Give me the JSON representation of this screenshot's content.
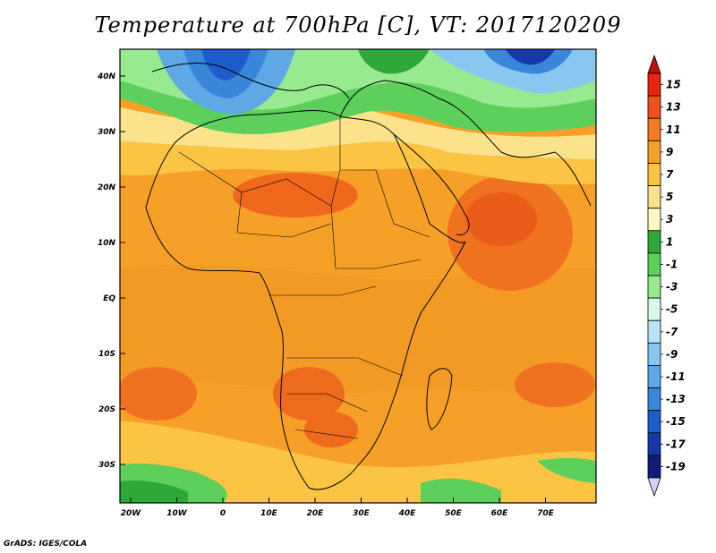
{
  "title": "Temperature at 700hPa [C], VT: 2017120209",
  "credit": "GrADS: IGES/COLA",
  "map": {
    "lat_ticks": [
      "40N",
      "30N",
      "20N",
      "10N",
      "EQ",
      "10S",
      "20S",
      "30S"
    ],
    "lon_ticks": [
      "20W",
      "10W",
      "0",
      "10E",
      "20E",
      "30E",
      "40E",
      "50E",
      "60E",
      "70E"
    ]
  },
  "colorbar": {
    "labels": [
      "15",
      "13",
      "11",
      "9",
      "7",
      "5",
      "3",
      "1",
      "-1",
      "-3",
      "-5",
      "-7",
      "-9",
      "-11",
      "-13",
      "-15",
      "-17",
      "-19"
    ],
    "colors": [
      "#e8250e",
      "#f0501a",
      "#f37a20",
      "#f7a028",
      "#fbc443",
      "#fde28c",
      "#fff8c0",
      "#2fa83a",
      "#5cd05a",
      "#97ea90",
      "#d9f8ea",
      "#b5e4f6",
      "#88c8f0",
      "#5ea8e6",
      "#3a86da",
      "#1e5ccc",
      "#1638a8",
      "#101c7a"
    ],
    "top_arrow": "#c01008",
    "bottom_arrow": "#d8d0f8"
  }
}
